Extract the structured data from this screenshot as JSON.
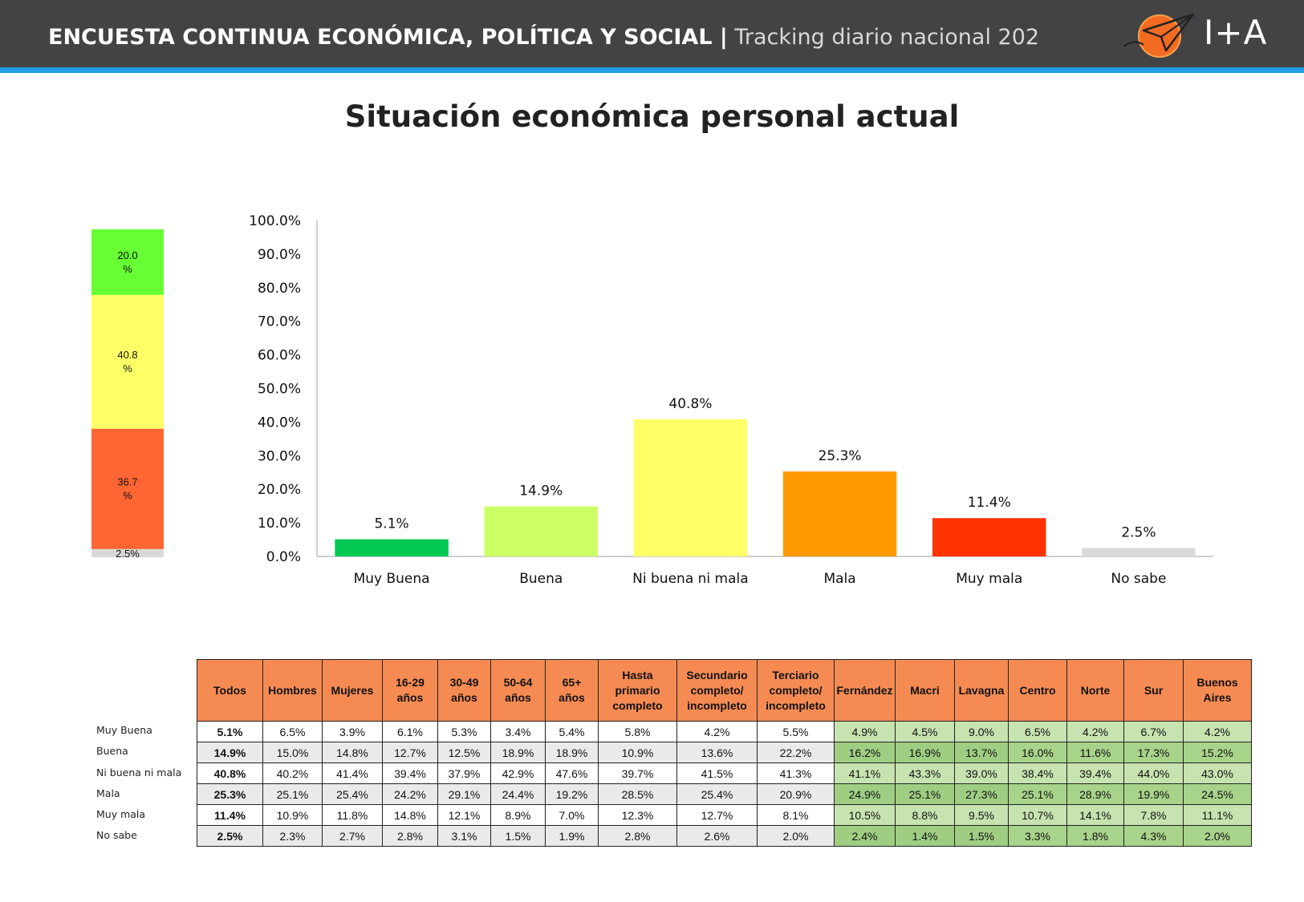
{
  "header": {
    "title_bold": "ENCUESTA CONTINUA ECONÓMICA, POLÍTICA Y SOCIAL |",
    "title_light": "Tracking diario nacional 202",
    "brand": "I+A"
  },
  "page_title": "Situación económica personal actual",
  "colors": {
    "muy_buena": "#00c853",
    "buena": "#ccff66",
    "ni": "#ffff66",
    "mala": "#ff9900",
    "muy_mala": "#ff3300",
    "no_sabe": "#d9d9d9",
    "stack_green": "#66ff33",
    "stack_yellow": "#ffff66",
    "stack_red": "#ff6633",
    "stack_grey": "#d9d9d9"
  },
  "chart_data": [
    {
      "type": "bar",
      "categories": [
        "Muy Buena",
        "Buena",
        "Ni buena ni mala",
        "Mala",
        "Muy mala",
        "No sabe"
      ],
      "values": [
        5.1,
        14.9,
        40.8,
        25.3,
        11.4,
        2.5
      ],
      "value_labels": [
        "5.1%",
        "14.9%",
        "40.8%",
        "25.3%",
        "11.4%",
        "2.5%"
      ],
      "ylim": [
        0,
        100
      ],
      "yticks": [
        "0.0%",
        "10.0%",
        "20.0%",
        "30.0%",
        "40.0%",
        "50.0%",
        "60.0%",
        "70.0%",
        "80.0%",
        "90.0%",
        "100.0%"
      ],
      "grid": false,
      "legend": "none"
    },
    {
      "type": "bar",
      "stacked": true,
      "segments": [
        {
          "value": 2.5,
          "label": "2.5%",
          "color_key": "stack_grey"
        },
        {
          "value": 36.7,
          "label_lines": [
            "36.7",
            "%"
          ],
          "color_key": "stack_red"
        },
        {
          "value": 40.8,
          "label_lines": [
            "40.8",
            "%"
          ],
          "color_key": "stack_yellow"
        },
        {
          "value": 20.0,
          "label_lines": [
            "20.0",
            "%"
          ],
          "color_key": "stack_green"
        }
      ]
    }
  ],
  "table": {
    "columns": [
      [
        "Todos"
      ],
      [
        "Hombres"
      ],
      [
        "Mujeres"
      ],
      [
        "16-29",
        "años"
      ],
      [
        "30-49",
        "años"
      ],
      [
        "50-64",
        "años"
      ],
      [
        "65+",
        "años"
      ],
      [
        "Hasta",
        "primario",
        "completo"
      ],
      [
        "Secundario",
        "completo/",
        "incompleto"
      ],
      [
        "Terciario",
        "completo/",
        "incompleto"
      ],
      [
        "Fernández"
      ],
      [
        "Macri"
      ],
      [
        "Lavagna"
      ],
      [
        "Centro"
      ],
      [
        "Norte"
      ],
      [
        "Sur"
      ],
      [
        "Buenos",
        "Aires"
      ]
    ],
    "rows": [
      {
        "label": "Muy Buena",
        "values": [
          "5.1%",
          "6.5%",
          "3.9%",
          "6.1%",
          "5.3%",
          "3.4%",
          "5.4%",
          "5.8%",
          "4.2%",
          "5.5%",
          "4.9%",
          "4.5%",
          "9.0%",
          "6.5%",
          "4.2%",
          "6.7%",
          "4.2%"
        ]
      },
      {
        "label": "Buena",
        "values": [
          "14.9%",
          "15.0%",
          "14.8%",
          "12.7%",
          "12.5%",
          "18.9%",
          "18.9%",
          "10.9%",
          "13.6%",
          "22.2%",
          "16.2%",
          "16.9%",
          "13.7%",
          "16.0%",
          "11.6%",
          "17.3%",
          "15.2%"
        ]
      },
      {
        "label": "Ni buena ni mala",
        "values": [
          "40.8%",
          "40.2%",
          "41.4%",
          "39.4%",
          "37.9%",
          "42.9%",
          "47.6%",
          "39.7%",
          "41.5%",
          "41.3%",
          "41.1%",
          "43.3%",
          "39.0%",
          "38.4%",
          "39.4%",
          "44.0%",
          "43.0%"
        ]
      },
      {
        "label": "Mala",
        "values": [
          "25.3%",
          "25.1%",
          "25.4%",
          "24.2%",
          "29.1%",
          "24.4%",
          "19.2%",
          "28.5%",
          "25.4%",
          "20.9%",
          "24.9%",
          "25.1%",
          "27.3%",
          "25.1%",
          "28.9%",
          "19.9%",
          "24.5%"
        ]
      },
      {
        "label": "Muy mala",
        "values": [
          "11.4%",
          "10.9%",
          "11.8%",
          "14.8%",
          "12.1%",
          "8.9%",
          "7.0%",
          "12.3%",
          "12.7%",
          "8.1%",
          "10.5%",
          "8.8%",
          "9.5%",
          "10.7%",
          "14.1%",
          "7.8%",
          "11.1%"
        ]
      },
      {
        "label": "No sabe",
        "values": [
          "2.5%",
          "2.3%",
          "2.7%",
          "2.8%",
          "3.1%",
          "1.5%",
          "1.9%",
          "2.8%",
          "2.6%",
          "2.0%",
          "2.4%",
          "1.4%",
          "1.5%",
          "3.3%",
          "1.8%",
          "4.3%",
          "2.0%"
        ]
      }
    ]
  }
}
